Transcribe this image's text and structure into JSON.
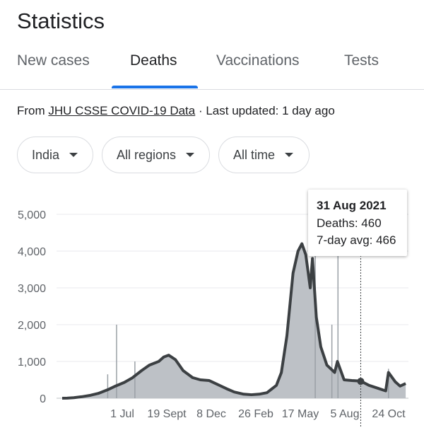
{
  "header": {
    "title": "Statistics"
  },
  "tabs": [
    {
      "label": "New cases"
    },
    {
      "label": "Deaths"
    },
    {
      "label": "Vaccinations"
    },
    {
      "label": "Tests"
    }
  ],
  "source": {
    "prefix": "From ",
    "link": "JHU CSSE COVID-19 Data",
    "suffix": " · Last updated: 1 day ago"
  },
  "filters": {
    "country": "India",
    "region": "All regions",
    "time": "All time"
  },
  "tooltip": {
    "date": "31 Aug 2021",
    "deaths": "Deaths: 460",
    "avg": "7-day avg: 466"
  },
  "colors": {
    "accent": "#1a73e8",
    "area": "#bdc1c6",
    "line": "#3c4043"
  },
  "chart_data": {
    "type": "area",
    "ylim": [
      0,
      5000
    ],
    "y_ticks": [
      {
        "value": 0,
        "label": "0"
      },
      {
        "value": 1000,
        "label": "1,000"
      },
      {
        "value": 2000,
        "label": "2,000"
      },
      {
        "value": 3000,
        "label": "3,000"
      },
      {
        "value": 4000,
        "label": "4,000"
      },
      {
        "value": 5000,
        "label": "5,000"
      }
    ],
    "x_ticks": [
      "1 Jul",
      "19 Sept",
      "8 Dec",
      "26 Feb",
      "17 May",
      "5 Aug",
      "24 Oct"
    ],
    "avg_series": [
      [
        "11 Mar 2020",
        0
      ],
      [
        "20 Mar 2020",
        2
      ],
      [
        "1 Apr 2020",
        15
      ],
      [
        "15 Apr 2020",
        40
      ],
      [
        "1 May 2020",
        80
      ],
      [
        "15 May 2020",
        130
      ],
      [
        "1 Jun 2020",
        230
      ],
      [
        "15 Jun 2020",
        330
      ],
      [
        "1 Jul 2020",
        430
      ],
      [
        "15 Jul 2020",
        550
      ],
      [
        "1 Aug 2020",
        750
      ],
      [
        "15 Aug 2020",
        900
      ],
      [
        "1 Sep 2020",
        1000
      ],
      [
        "10 Sep 2020",
        1120
      ],
      [
        "19 Sep 2020",
        1170
      ],
      [
        "1 Oct 2020",
        1050
      ],
      [
        "15 Oct 2020",
        750
      ],
      [
        "1 Nov 2020",
        560
      ],
      [
        "15 Nov 2020",
        500
      ],
      [
        "1 Dec 2020",
        480
      ],
      [
        "15 Dec 2020",
        380
      ],
      [
        "1 Jan 2021",
        260
      ],
      [
        "15 Jan 2021",
        170
      ],
      [
        "1 Feb 2021",
        110
      ],
      [
        "15 Feb 2021",
        95
      ],
      [
        "1 Mar 2021",
        110
      ],
      [
        "15 Mar 2021",
        150
      ],
      [
        "1 Apr 2021",
        350
      ],
      [
        "10 Apr 2021",
        700
      ],
      [
        "20 Apr 2021",
        1700
      ],
      [
        "1 May 2021",
        3400
      ],
      [
        "10 May 2021",
        4000
      ],
      [
        "17 May 2021",
        4200
      ],
      [
        "24 May 2021",
        3900
      ],
      [
        "1 Jun 2021",
        3000
      ],
      [
        "5 Jun 2021",
        3800
      ],
      [
        "12 Jun 2021",
        2200
      ],
      [
        "20 Jun 2021",
        1400
      ],
      [
        "1 Jul 2021",
        900
      ],
      [
        "15 Jul 2021",
        700
      ],
      [
        "20 Jul 2021",
        1000
      ],
      [
        "1 Aug 2021",
        500
      ],
      [
        "15 Aug 2021",
        480
      ],
      [
        "31 Aug 2021",
        466
      ],
      [
        "15 Sep 2021",
        350
      ],
      [
        "1 Oct 2021",
        270
      ],
      [
        "15 Oct 2021",
        200
      ],
      [
        "20 Oct 2021",
        700
      ],
      [
        "1 Nov 2021",
        450
      ],
      [
        "10 Nov 2021",
        330
      ],
      [
        "20 Nov 2021",
        400
      ]
    ],
    "spikes": [
      [
        "1 Jun 2020",
        650
      ],
      [
        "17 Jun 2020",
        2000
      ],
      [
        "20 Jul 2020",
        1000
      ],
      [
        "10 Jun 2021",
        4400
      ],
      [
        "10 Jul 2021",
        2000
      ],
      [
        "21 Jul 2021",
        3900
      ],
      [
        "20 Oct 2021",
        800
      ]
    ],
    "highlight": {
      "x": "31 Aug 2021",
      "y": 460
    }
  }
}
